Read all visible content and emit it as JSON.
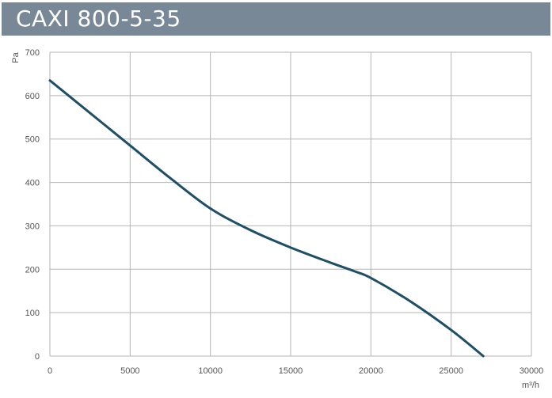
{
  "header": {
    "title": "CAXI 800-5-35"
  },
  "chart_data": {
    "type": "line",
    "title": "CAXI 800-5-35",
    "xlabel": "m³/h",
    "ylabel": "Pa",
    "xlim": [
      0,
      30000
    ],
    "ylim": [
      0,
      700
    ],
    "x_ticks": [
      0,
      5000,
      10000,
      15000,
      20000,
      25000,
      30000
    ],
    "y_ticks": [
      0,
      100,
      200,
      300,
      400,
      500,
      600,
      700
    ],
    "grid": true,
    "legend": "none",
    "colors": {
      "line": "#1e4f66",
      "grid": "#b5b5b5",
      "header": "#798896"
    },
    "series": [
      {
        "x": [
          0,
          2500,
          5000,
          7500,
          10000,
          12500,
          15000,
          17500,
          19000,
          20000,
          22500,
          25000,
          27000
        ],
        "y": [
          635,
          560,
          485,
          410,
          340,
          290,
          250,
          215,
          195,
          180,
          125,
          60,
          0
        ]
      }
    ]
  }
}
